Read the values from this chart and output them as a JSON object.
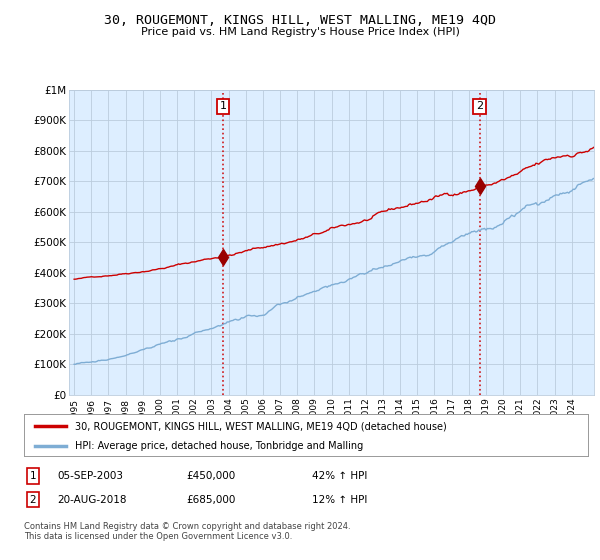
{
  "title": "30, ROUGEMONT, KINGS HILL, WEST MALLING, ME19 4QD",
  "subtitle": "Price paid vs. HM Land Registry's House Price Index (HPI)",
  "ylabel_ticks": [
    "£0",
    "£100K",
    "£200K",
    "£300K",
    "£400K",
    "£500K",
    "£600K",
    "£700K",
    "£800K",
    "£900K",
    "£1M"
  ],
  "ytick_values": [
    0,
    100000,
    200000,
    300000,
    400000,
    500000,
    600000,
    700000,
    800000,
    900000,
    1000000
  ],
  "ylim": [
    0,
    1000000
  ],
  "xlim_start": 1994.7,
  "xlim_end": 2025.3,
  "sale1_x": 2003.68,
  "sale1_y": 450000,
  "sale1_label": "1",
  "sale1_date": "05-SEP-2003",
  "sale1_price": "£450,000",
  "sale1_hpi": "42% ↑ HPI",
  "sale2_x": 2018.63,
  "sale2_y": 685000,
  "sale2_label": "2",
  "sale2_date": "20-AUG-2018",
  "sale2_price": "£685,000",
  "sale2_hpi": "12% ↑ HPI",
  "line1_color": "#cc0000",
  "line2_color": "#7eadd4",
  "vline_color": "#cc0000",
  "marker_color": "#990000",
  "chart_bg_color": "#ddeeff",
  "background_color": "#ffffff",
  "grid_color": "#bbccdd",
  "legend1_label": "30, ROUGEMONT, KINGS HILL, WEST MALLING, ME19 4QD (detached house)",
  "legend2_label": "HPI: Average price, detached house, Tonbridge and Malling",
  "footer": "Contains HM Land Registry data © Crown copyright and database right 2024.\nThis data is licensed under the Open Government Licence v3.0.",
  "xtick_years": [
    1995,
    1996,
    1997,
    1998,
    1999,
    2000,
    2001,
    2002,
    2003,
    2004,
    2005,
    2006,
    2007,
    2008,
    2009,
    2010,
    2011,
    2012,
    2013,
    2014,
    2015,
    2016,
    2017,
    2018,
    2019,
    2020,
    2021,
    2022,
    2023,
    2024
  ]
}
